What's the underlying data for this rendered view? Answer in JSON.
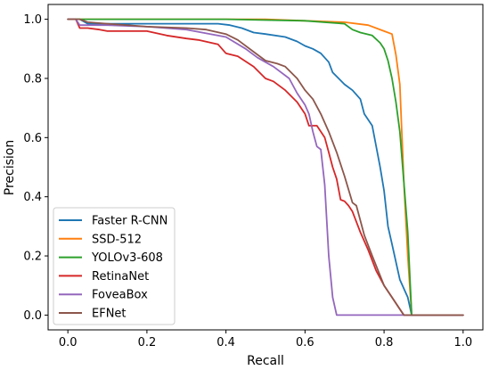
{
  "chart_data": {
    "type": "line",
    "title": "",
    "xlabel": "Recall",
    "ylabel": "Precision",
    "xlim": [
      -0.05,
      1.05
    ],
    "ylim": [
      -0.05,
      1.05
    ],
    "xticks": [
      0.0,
      0.2,
      0.4,
      0.6,
      0.8,
      1.0
    ],
    "yticks": [
      0.0,
      0.2,
      0.4,
      0.6,
      0.8,
      1.0
    ],
    "xtick_labels": [
      "0.0",
      "0.2",
      "0.4",
      "0.6",
      "0.8",
      "1.0"
    ],
    "ytick_labels": [
      "0.0",
      "0.2",
      "0.4",
      "0.6",
      "0.8",
      "1.0"
    ],
    "grid": false,
    "legend_position": "lower-left",
    "series": [
      {
        "name": "Faster R-CNN",
        "color": "#1f77b4",
        "x": [
          0.0,
          0.03,
          0.05,
          0.1,
          0.2,
          0.3,
          0.38,
          0.41,
          0.44,
          0.47,
          0.5,
          0.55,
          0.58,
          0.6,
          0.62,
          0.64,
          0.66,
          0.67,
          0.7,
          0.72,
          0.74,
          0.75,
          0.77,
          0.79,
          0.8,
          0.81,
          0.82,
          0.84,
          0.86,
          0.87,
          0.88,
          1.0
        ],
        "y": [
          1.0,
          1.0,
          0.985,
          0.985,
          0.985,
          0.985,
          0.985,
          0.98,
          0.97,
          0.955,
          0.95,
          0.94,
          0.925,
          0.91,
          0.9,
          0.885,
          0.855,
          0.82,
          0.78,
          0.76,
          0.73,
          0.68,
          0.64,
          0.5,
          0.42,
          0.3,
          0.24,
          0.12,
          0.06,
          0.0,
          0.0,
          0.0
        ]
      },
      {
        "name": "SSD-512",
        "color": "#ff7f0e",
        "x": [
          0.0,
          0.2,
          0.4,
          0.5,
          0.6,
          0.7,
          0.76,
          0.8,
          0.82,
          0.83,
          0.84,
          0.85,
          0.86,
          0.87,
          0.88,
          1.0
        ],
        "y": [
          1.0,
          1.0,
          1.0,
          1.0,
          0.995,
          0.99,
          0.98,
          0.96,
          0.95,
          0.88,
          0.78,
          0.45,
          0.2,
          0.0,
          0.0,
          0.0
        ]
      },
      {
        "name": "YOLOv3-608",
        "color": "#2ca02c",
        "x": [
          0.0,
          0.2,
          0.4,
          0.6,
          0.7,
          0.72,
          0.74,
          0.77,
          0.79,
          0.8,
          0.81,
          0.82,
          0.83,
          0.84,
          0.85,
          0.86,
          0.87,
          0.88,
          1.0
        ],
        "y": [
          1.0,
          1.0,
          1.0,
          0.995,
          0.985,
          0.965,
          0.955,
          0.945,
          0.92,
          0.9,
          0.86,
          0.8,
          0.72,
          0.62,
          0.45,
          0.28,
          0.0,
          0.0,
          0.0
        ]
      },
      {
        "name": "RetinaNet",
        "color": "#d62728",
        "x": [
          0.0,
          0.02,
          0.03,
          0.05,
          0.08,
          0.1,
          0.2,
          0.25,
          0.3,
          0.33,
          0.38,
          0.4,
          0.43,
          0.47,
          0.5,
          0.52,
          0.55,
          0.58,
          0.6,
          0.61,
          0.63,
          0.65,
          0.66,
          0.67,
          0.68,
          0.69,
          0.7,
          0.71,
          0.72,
          0.74,
          0.76,
          0.78,
          0.8,
          0.82,
          0.84,
          0.85,
          1.0
        ],
        "y": [
          1.0,
          1.0,
          0.97,
          0.97,
          0.965,
          0.96,
          0.96,
          0.945,
          0.935,
          0.93,
          0.915,
          0.885,
          0.875,
          0.84,
          0.8,
          0.79,
          0.76,
          0.72,
          0.68,
          0.64,
          0.64,
          0.6,
          0.55,
          0.5,
          0.46,
          0.39,
          0.385,
          0.37,
          0.35,
          0.28,
          0.22,
          0.15,
          0.1,
          0.06,
          0.02,
          0.0,
          0.0
        ]
      },
      {
        "name": "FoveaBox",
        "color": "#9467bd",
        "x": [
          0.0,
          0.02,
          0.03,
          0.1,
          0.2,
          0.3,
          0.4,
          0.45,
          0.48,
          0.52,
          0.56,
          0.58,
          0.6,
          0.61,
          0.62,
          0.63,
          0.64,
          0.645,
          0.65,
          0.66,
          0.67,
          0.68,
          0.7,
          1.0
        ],
        "y": [
          1.0,
          1.0,
          0.98,
          0.98,
          0.975,
          0.965,
          0.94,
          0.9,
          0.87,
          0.84,
          0.8,
          0.75,
          0.71,
          0.68,
          0.62,
          0.57,
          0.56,
          0.5,
          0.44,
          0.2,
          0.06,
          0.0,
          0.0,
          0.0
        ]
      },
      {
        "name": "EFNet",
        "color": "#8c564b",
        "x": [
          0.0,
          0.03,
          0.05,
          0.1,
          0.2,
          0.3,
          0.35,
          0.4,
          0.43,
          0.47,
          0.5,
          0.53,
          0.55,
          0.58,
          0.6,
          0.62,
          0.64,
          0.66,
          0.68,
          0.7,
          0.72,
          0.73,
          0.75,
          0.77,
          0.8,
          0.82,
          0.84,
          0.85,
          0.86,
          1.0
        ],
        "y": [
          1.0,
          1.0,
          0.99,
          0.985,
          0.975,
          0.97,
          0.965,
          0.95,
          0.93,
          0.89,
          0.86,
          0.85,
          0.84,
          0.8,
          0.76,
          0.73,
          0.68,
          0.62,
          0.55,
          0.47,
          0.38,
          0.37,
          0.27,
          0.2,
          0.1,
          0.06,
          0.02,
          0.0,
          0.0,
          0.0
        ]
      }
    ]
  }
}
